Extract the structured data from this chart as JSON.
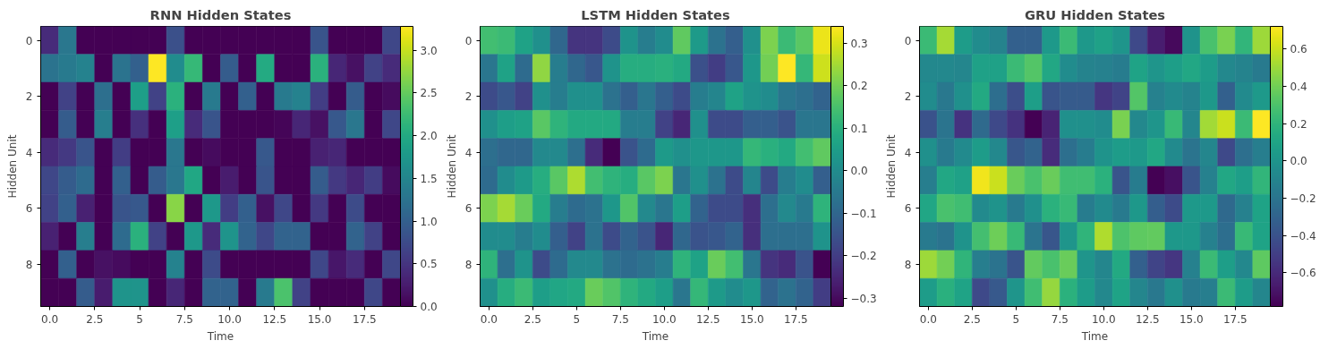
{
  "chart_data": [
    {
      "type": "heatmap",
      "title": "RNN Hidden States",
      "xlabel": "Time",
      "ylabel": "Hidden Unit",
      "x": [
        0,
        1,
        2,
        3,
        4,
        5,
        6,
        7,
        8,
        9,
        10,
        11,
        12,
        13,
        14,
        15,
        16,
        17,
        18,
        19
      ],
      "y_categories": [
        "0",
        null,
        "2",
        null,
        "4",
        null,
        "6",
        null,
        "8",
        null
      ],
      "xlim": [
        -0.5,
        19.5
      ],
      "xticks": [
        {
          "value": 0,
          "label": "0.0"
        },
        2.5,
        5,
        {
          "value": 7.5,
          "label": "7.5"
        },
        {
          "value": 10,
          "label": "10.0"
        },
        12.5,
        {
          "value": 15,
          "label": "15.0"
        },
        17.5
      ],
      "clim": [
        0,
        3.28
      ],
      "cticks": [
        {
          "value": 0,
          "label": "0.0"
        },
        0.5,
        {
          "value": 1,
          "label": "1.0"
        },
        1.5,
        {
          "value": 2,
          "label": "2.0"
        },
        2.5,
        {
          "value": 3,
          "label": "3.0"
        }
      ],
      "cells": [
        [
          0.4,
          1.3,
          0,
          0,
          0,
          0,
          0,
          0.8,
          0,
          0,
          0,
          0,
          0,
          0,
          0,
          0.85,
          0,
          0,
          0,
          0.7
        ],
        [
          1.25,
          1.35,
          1.45,
          0,
          1.25,
          1.0,
          3.28,
          1.6,
          2.2,
          0,
          0.95,
          0,
          2.0,
          0,
          0,
          2.1,
          0.35,
          0.15,
          0.65,
          0.4
        ],
        [
          0,
          0.65,
          0,
          1.2,
          0,
          1.85,
          0.65,
          2.1,
          0,
          1.35,
          0,
          1.0,
          0,
          1.35,
          1.45,
          0.6,
          0,
          0.95,
          0,
          0.1
        ],
        [
          0,
          0.95,
          0,
          1.4,
          0,
          0.45,
          0,
          1.85,
          0.4,
          0.85,
          0,
          0,
          0,
          0.05,
          0.35,
          0.15,
          0.9,
          1.3,
          0,
          0.7
        ],
        [
          0.4,
          0.55,
          0.85,
          0,
          0.6,
          0,
          0,
          1.3,
          0,
          0.1,
          0,
          0,
          0.9,
          0,
          0,
          0.3,
          0.35,
          0,
          0,
          0
        ],
        [
          0.7,
          0.95,
          1.15,
          0,
          1.0,
          0,
          0.95,
          1.3,
          1.95,
          0,
          0.25,
          0,
          0.85,
          0,
          0,
          0.95,
          0.55,
          0.35,
          0.6,
          0.1
        ],
        [
          0.65,
          1.0,
          0.3,
          0,
          0.85,
          0.9,
          0,
          2.7,
          0,
          1.75,
          0.6,
          1.0,
          0.15,
          0.7,
          0,
          0.55,
          0,
          0.75,
          0,
          0
        ],
        [
          0.3,
          0,
          1.4,
          0,
          1.15,
          2.1,
          0.65,
          0,
          1.75,
          0.4,
          1.7,
          1.05,
          0.7,
          1.05,
          1.05,
          0,
          0,
          1.05,
          0.65,
          0
        ],
        [
          0,
          1.0,
          0,
          0.15,
          0.1,
          0,
          0,
          1.45,
          0,
          0.75,
          0,
          0,
          0,
          0,
          0,
          0.7,
          0.2,
          0.4,
          0,
          0.7
        ],
        [
          0,
          0,
          0.95,
          0.25,
          1.7,
          1.7,
          0,
          0.35,
          0,
          1.05,
          1.05,
          0,
          1.35,
          2.35,
          0.65,
          0,
          0,
          0,
          0.7,
          0
        ]
      ]
    },
    {
      "type": "heatmap",
      "title": "LSTM Hidden States",
      "xlabel": "Time",
      "ylabel": "Hidden Unit",
      "x": [
        0,
        1,
        2,
        3,
        4,
        5,
        6,
        7,
        8,
        9,
        10,
        11,
        12,
        13,
        14,
        15,
        16,
        17,
        18,
        19
      ],
      "y_categories": [
        "0",
        null,
        "2",
        null,
        "4",
        null,
        "6",
        null,
        "8",
        null
      ],
      "xlim": [
        -0.5,
        19.5
      ],
      "xticks": [
        {
          "value": 0,
          "label": "0.0"
        },
        2.5,
        5,
        {
          "value": 7.5,
          "label": "7.5"
        },
        {
          "value": 10,
          "label": "10.0"
        },
        12.5,
        {
          "value": 15,
          "label": "15.0"
        },
        17.5
      ],
      "clim": [
        -0.32,
        0.34
      ],
      "cticks": [
        {
          "value": -0.3,
          "label": "−0.3"
        },
        {
          "value": -0.2,
          "label": "−0.2"
        },
        {
          "value": -0.1,
          "label": "−0.1"
        },
        {
          "value": 0,
          "label": "0.0"
        },
        0.1,
        0.2,
        0.3
      ],
      "cells": [
        [
          0.14,
          0.13,
          0.06,
          0.01,
          -0.1,
          -0.22,
          -0.22,
          -0.17,
          0.02,
          -0.04,
          0.0,
          0.18,
          0.04,
          -0.07,
          -0.12,
          0.01,
          0.21,
          0.13,
          0.17,
          0.32
        ],
        [
          -0.06,
          0.06,
          -0.09,
          0.23,
          -0.04,
          -0.1,
          -0.14,
          0.02,
          0.09,
          0.09,
          0.1,
          0.08,
          -0.16,
          -0.2,
          -0.14,
          0.03,
          0.2,
          0.34,
          0.12,
          0.29
        ],
        [
          -0.17,
          -0.14,
          -0.19,
          0.01,
          -0.04,
          0.01,
          0.01,
          -0.07,
          -0.12,
          -0.06,
          -0.12,
          -0.17,
          -0.04,
          -0.02,
          0.06,
          0.02,
          0.0,
          -0.06,
          -0.08,
          -0.11
        ],
        [
          0.01,
          0.05,
          0.06,
          0.17,
          0.11,
          0.08,
          0.08,
          0.08,
          -0.04,
          -0.04,
          -0.19,
          -0.25,
          0.01,
          -0.17,
          -0.17,
          -0.12,
          -0.12,
          -0.15,
          -0.06,
          -0.06
        ],
        [
          -0.08,
          -0.1,
          -0.1,
          -0.01,
          -0.01,
          -0.08,
          -0.24,
          -0.32,
          -0.15,
          -0.09,
          0.04,
          0.01,
          0.03,
          0.03,
          0.03,
          0.12,
          0.1,
          0.08,
          0.14,
          0.18
        ],
        [
          -0.09,
          0.0,
          0.04,
          0.09,
          0.17,
          0.26,
          0.14,
          0.11,
          0.09,
          0.17,
          0.21,
          -0.06,
          0.01,
          -0.07,
          -0.17,
          -0.02,
          -0.17,
          -0.04,
          0.0,
          -0.12
        ],
        [
          0.21,
          0.25,
          0.19,
          0.08,
          -0.04,
          -0.09,
          -0.07,
          0.03,
          0.16,
          -0.01,
          -0.06,
          0.05,
          -0.11,
          -0.17,
          -0.17,
          -0.23,
          -0.08,
          -0.01,
          -0.05,
          0.11
        ],
        [
          0.0,
          0.0,
          -0.04,
          0.0,
          -0.12,
          -0.19,
          -0.07,
          -0.17,
          -0.11,
          -0.15,
          -0.25,
          -0.1,
          -0.15,
          -0.14,
          -0.11,
          -0.23,
          -0.08,
          -0.08,
          -0.08,
          0.02
        ],
        [
          0.11,
          -0.08,
          0.02,
          -0.17,
          -0.09,
          -0.01,
          -0.01,
          -0.07,
          -0.09,
          -0.07,
          -0.04,
          0.11,
          0.06,
          0.19,
          0.14,
          -0.06,
          -0.22,
          -0.24,
          -0.15,
          -0.32
        ],
        [
          0.01,
          0.09,
          0.13,
          0.05,
          0.07,
          0.08,
          0.19,
          0.16,
          0.11,
          0.08,
          0.05,
          -0.06,
          0.12,
          0.04,
          0.0,
          0.03,
          -0.11,
          -0.07,
          -0.11,
          -0.2
        ]
      ]
    },
    {
      "type": "heatmap",
      "title": "GRU Hidden States",
      "xlabel": "Time",
      "ylabel": "Hidden Unit",
      "x": [
        0,
        1,
        2,
        3,
        4,
        5,
        6,
        7,
        8,
        9,
        10,
        11,
        12,
        13,
        14,
        15,
        16,
        17,
        18,
        19
      ],
      "y_categories": [
        "0",
        null,
        "2",
        null,
        "4",
        null,
        "6",
        null,
        "8",
        null
      ],
      "xlim": [
        -0.5,
        19.5
      ],
      "xticks": [
        {
          "value": 0,
          "label": "0.0"
        },
        2.5,
        5,
        {
          "value": 7.5,
          "label": "7.5"
        },
        {
          "value": 10,
          "label": "10.0"
        },
        12.5,
        {
          "value": 15,
          "label": "15.0"
        },
        17.5
      ],
      "clim": [
        -0.78,
        0.72
      ],
      "cticks": [
        {
          "value": -0.6,
          "label": "−0.6"
        },
        {
          "value": -0.4,
          "label": "−0.4"
        },
        {
          "value": -0.2,
          "label": "−0.2"
        },
        {
          "value": 0,
          "label": "0.0"
        },
        0.2,
        0.4,
        0.6
      ],
      "cells": [
        [
          0.24,
          0.52,
          0.05,
          -0.05,
          -0.11,
          -0.32,
          -0.32,
          0.03,
          0.24,
          0.02,
          0.08,
          0.0,
          -0.45,
          -0.66,
          -0.74,
          -0.01,
          0.29,
          0.42,
          0.21,
          0.5
        ],
        [
          -0.08,
          -0.08,
          -0.09,
          0.08,
          0.08,
          0.24,
          0.32,
          0.12,
          -0.05,
          -0.11,
          -0.12,
          -0.15,
          0.09,
          0.0,
          0.06,
          0.12,
          0.05,
          -0.08,
          -0.11,
          -0.17
        ],
        [
          -0.05,
          -0.18,
          -0.03,
          0.13,
          -0.24,
          -0.42,
          0.06,
          -0.39,
          -0.35,
          -0.35,
          -0.54,
          -0.48,
          0.32,
          -0.12,
          -0.06,
          -0.11,
          0.02,
          -0.32,
          -0.06,
          0.03
        ],
        [
          -0.4,
          -0.2,
          -0.56,
          -0.26,
          -0.45,
          -0.56,
          -0.78,
          -0.63,
          -0.03,
          -0.03,
          -0.05,
          0.42,
          -0.08,
          0.0,
          0.23,
          -0.09,
          0.51,
          0.6,
          0.24,
          0.72
        ],
        [
          -0.03,
          -0.17,
          -0.06,
          0.05,
          -0.08,
          -0.38,
          -0.3,
          -0.59,
          -0.23,
          -0.15,
          -0.01,
          0.05,
          0.03,
          0.12,
          -0.06,
          -0.2,
          -0.09,
          -0.45,
          -0.23,
          -0.14
        ],
        [
          -0.14,
          0.12,
          0.08,
          0.69,
          0.6,
          0.38,
          0.29,
          0.38,
          0.26,
          0.26,
          0.18,
          -0.39,
          -0.15,
          -0.78,
          -0.72,
          -0.39,
          -0.12,
          0.12,
          0.06,
          0.21
        ],
        [
          0.11,
          0.29,
          0.26,
          -0.06,
          -0.01,
          -0.17,
          -0.03,
          0.18,
          0.23,
          -0.15,
          -0.06,
          -0.17,
          0.02,
          -0.33,
          -0.44,
          0.03,
          0.03,
          -0.27,
          -0.12,
          0.09
        ],
        [
          -0.17,
          -0.21,
          -0.01,
          0.27,
          0.39,
          0.23,
          -0.2,
          -0.38,
          0.0,
          0.2,
          0.54,
          0.3,
          0.35,
          0.36,
          0.02,
          0.02,
          -0.12,
          -0.24,
          0.23,
          0.09
        ],
        [
          0.5,
          0.4,
          0.2,
          -0.14,
          -0.21,
          -0.39,
          0.36,
          0.29,
          0.38,
          0.0,
          -0.09,
          0.13,
          -0.32,
          -0.47,
          -0.54,
          -0.12,
          0.24,
          0.06,
          -0.08,
          0.35
        ],
        [
          0.05,
          0.17,
          0.09,
          -0.45,
          -0.36,
          0.0,
          0.26,
          0.48,
          0.18,
          0.05,
          -0.08,
          0.09,
          -0.09,
          -0.18,
          -0.03,
          -0.17,
          -0.14,
          0.24,
          0.05,
          -0.09
        ]
      ]
    }
  ]
}
